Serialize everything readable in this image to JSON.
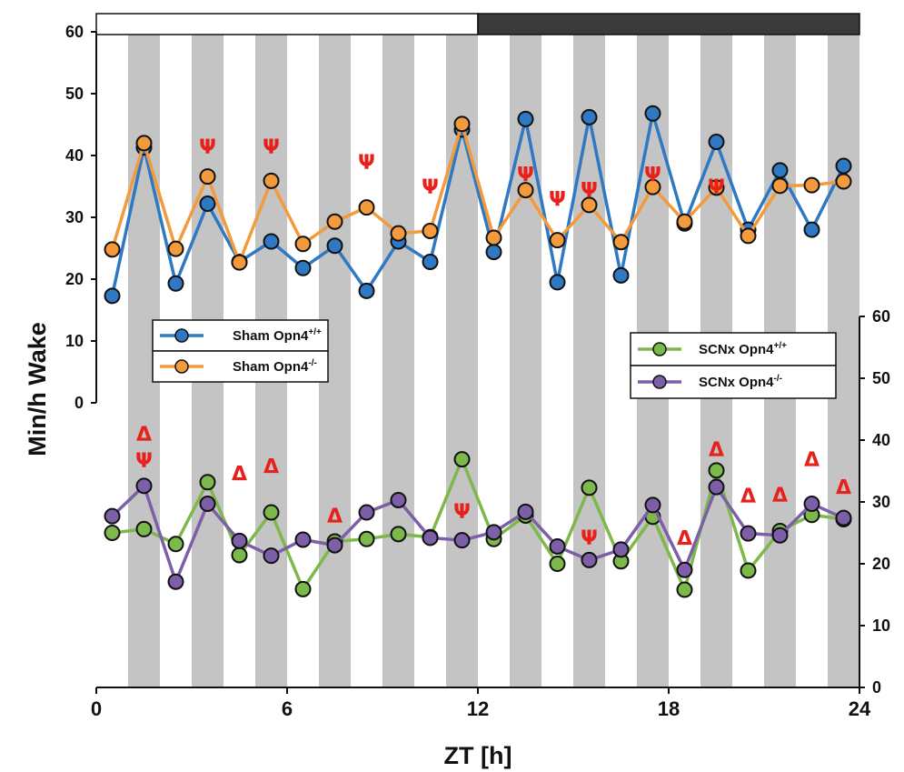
{
  "chart_data": [
    {
      "type": "line",
      "panel": "top",
      "x": [
        0.5,
        1.5,
        2.5,
        3.5,
        4.5,
        5.5,
        6.5,
        7.5,
        8.5,
        9.5,
        10.5,
        11.5,
        12.5,
        13.5,
        14.5,
        15.5,
        16.5,
        17.5,
        18.5,
        19.5,
        20.5,
        21.5,
        22.5,
        23.5
      ],
      "ylim": [
        0,
        60
      ],
      "y_ticks": [
        "0",
        "10",
        "20",
        "30",
        "40",
        "50",
        "60"
      ],
      "series": [
        {
          "name": "Sham Opn4+/+",
          "label_main": "Sham Opn4",
          "label_sup": "+/+",
          "color": "#2e78c4",
          "values": [
            17.3,
            41.3,
            19.3,
            32.2,
            22.8,
            26.1,
            21.8,
            25.4,
            18.1,
            26.1,
            22.8,
            44.2,
            24.4,
            45.9,
            19.5,
            46.2,
            20.6,
            46.8,
            29.0,
            42.2,
            28.0,
            37.6,
            28.0,
            38.3
          ]
        },
        {
          "name": "Sham Opn4-/-",
          "label_main": "Sham Opn4",
          "label_sup": "-/-",
          "color": "#f39a3c",
          "values": [
            24.8,
            42.0,
            24.9,
            36.6,
            22.7,
            35.9,
            25.7,
            29.3,
            31.6,
            27.4,
            27.8,
            45.1,
            26.7,
            34.4,
            26.3,
            32.0,
            26.0,
            34.9,
            29.3,
            34.8,
            27.0,
            35.1,
            35.2,
            35.8
          ]
        }
      ],
      "annotations": [
        {
          "text": "Ψ",
          "x": 3.5,
          "y": 41.5
        },
        {
          "text": "Ψ",
          "x": 5.5,
          "y": 41.5
        },
        {
          "text": "Ψ",
          "x": 8.5,
          "y": 39.0
        },
        {
          "text": "Ψ",
          "x": 10.5,
          "y": 35.0
        },
        {
          "text": "Ψ",
          "x": 13.5,
          "y": 37.0
        },
        {
          "text": "Ψ",
          "x": 14.5,
          "y": 33.0
        },
        {
          "text": "Ψ",
          "x": 15.5,
          "y": 34.5
        },
        {
          "text": "Ψ",
          "x": 17.5,
          "y": 37.0
        },
        {
          "text": "Ψ",
          "x": 19.5,
          "y": 35.0
        }
      ]
    },
    {
      "type": "line",
      "panel": "bottom",
      "x": [
        0.5,
        1.5,
        2.5,
        3.5,
        4.5,
        5.5,
        6.5,
        7.5,
        8.5,
        9.5,
        10.5,
        11.5,
        12.5,
        13.5,
        14.5,
        15.5,
        16.5,
        17.5,
        18.5,
        19.5,
        20.5,
        21.5,
        22.5,
        23.5
      ],
      "ylim": [
        0,
        60
      ],
      "y_ticks": [
        "0",
        "10",
        "20",
        "30",
        "40",
        "50",
        "60"
      ],
      "series": [
        {
          "name": "SCNx Opn4+/+",
          "label_main": "SCNx Opn4",
          "label_sup": "+/+",
          "color": "#7cb84a",
          "values": [
            25.0,
            25.6,
            23.2,
            33.2,
            21.4,
            28.3,
            15.9,
            23.6,
            24.0,
            24.8,
            24.3,
            36.9,
            24.0,
            27.8,
            20.0,
            32.3,
            20.4,
            27.6,
            15.8,
            35.1,
            18.9,
            25.3,
            27.9,
            27.2
          ]
        },
        {
          "name": "SCNx Opn4-/-",
          "label_main": "SCNx Opn4",
          "label_sup": "-/-",
          "color": "#7d5fa8",
          "values": [
            27.7,
            32.6,
            17.1,
            29.7,
            23.7,
            21.3,
            23.9,
            23.0,
            28.3,
            30.3,
            24.2,
            23.8,
            25.1,
            28.4,
            22.8,
            20.6,
            22.3,
            29.5,
            19.0,
            32.4,
            24.9,
            24.6,
            29.7,
            27.4
          ]
        }
      ],
      "annotations": [
        {
          "text": "Δ",
          "x": 1.5,
          "y": 41.0
        },
        {
          "text": "Ψ",
          "x": 1.5,
          "y": 36.8
        },
        {
          "text": "Δ",
          "x": 4.5,
          "y": 34.6
        },
        {
          "text": "Δ",
          "x": 5.5,
          "y": 35.8
        },
        {
          "text": "Δ",
          "x": 7.5,
          "y": 27.8
        },
        {
          "text": "Ψ",
          "x": 11.5,
          "y": 28.5
        },
        {
          "text": "Ψ",
          "x": 15.5,
          "y": 24.3
        },
        {
          "text": "Δ",
          "x": 18.5,
          "y": 24.2
        },
        {
          "text": "Δ",
          "x": 19.5,
          "y": 38.5
        },
        {
          "text": "Δ",
          "x": 20.5,
          "y": 31.0
        },
        {
          "text": "Δ",
          "x": 21.5,
          "y": 31.2
        },
        {
          "text": "Δ",
          "x": 22.5,
          "y": 36.9
        },
        {
          "text": "Δ",
          "x": 23.5,
          "y": 32.4
        }
      ]
    }
  ],
  "shared": {
    "xlabel": "ZT [h]",
    "ylabel": "Min/h Wake",
    "x_ticks": [
      "0",
      "6",
      "12",
      "18",
      "24"
    ],
    "xlim": [
      0,
      24
    ],
    "light_dark_bar": {
      "light": [
        0,
        12
      ],
      "dark": [
        12,
        24
      ],
      "light_color": "#ffffff",
      "dark_color": "#3a3a3a"
    },
    "gray_bands_hours": [
      1,
      3,
      5,
      7,
      9,
      11,
      13,
      15,
      17,
      19,
      21,
      23
    ],
    "band_color": "#c4c4c4",
    "annotation_color": "#e8201c"
  }
}
